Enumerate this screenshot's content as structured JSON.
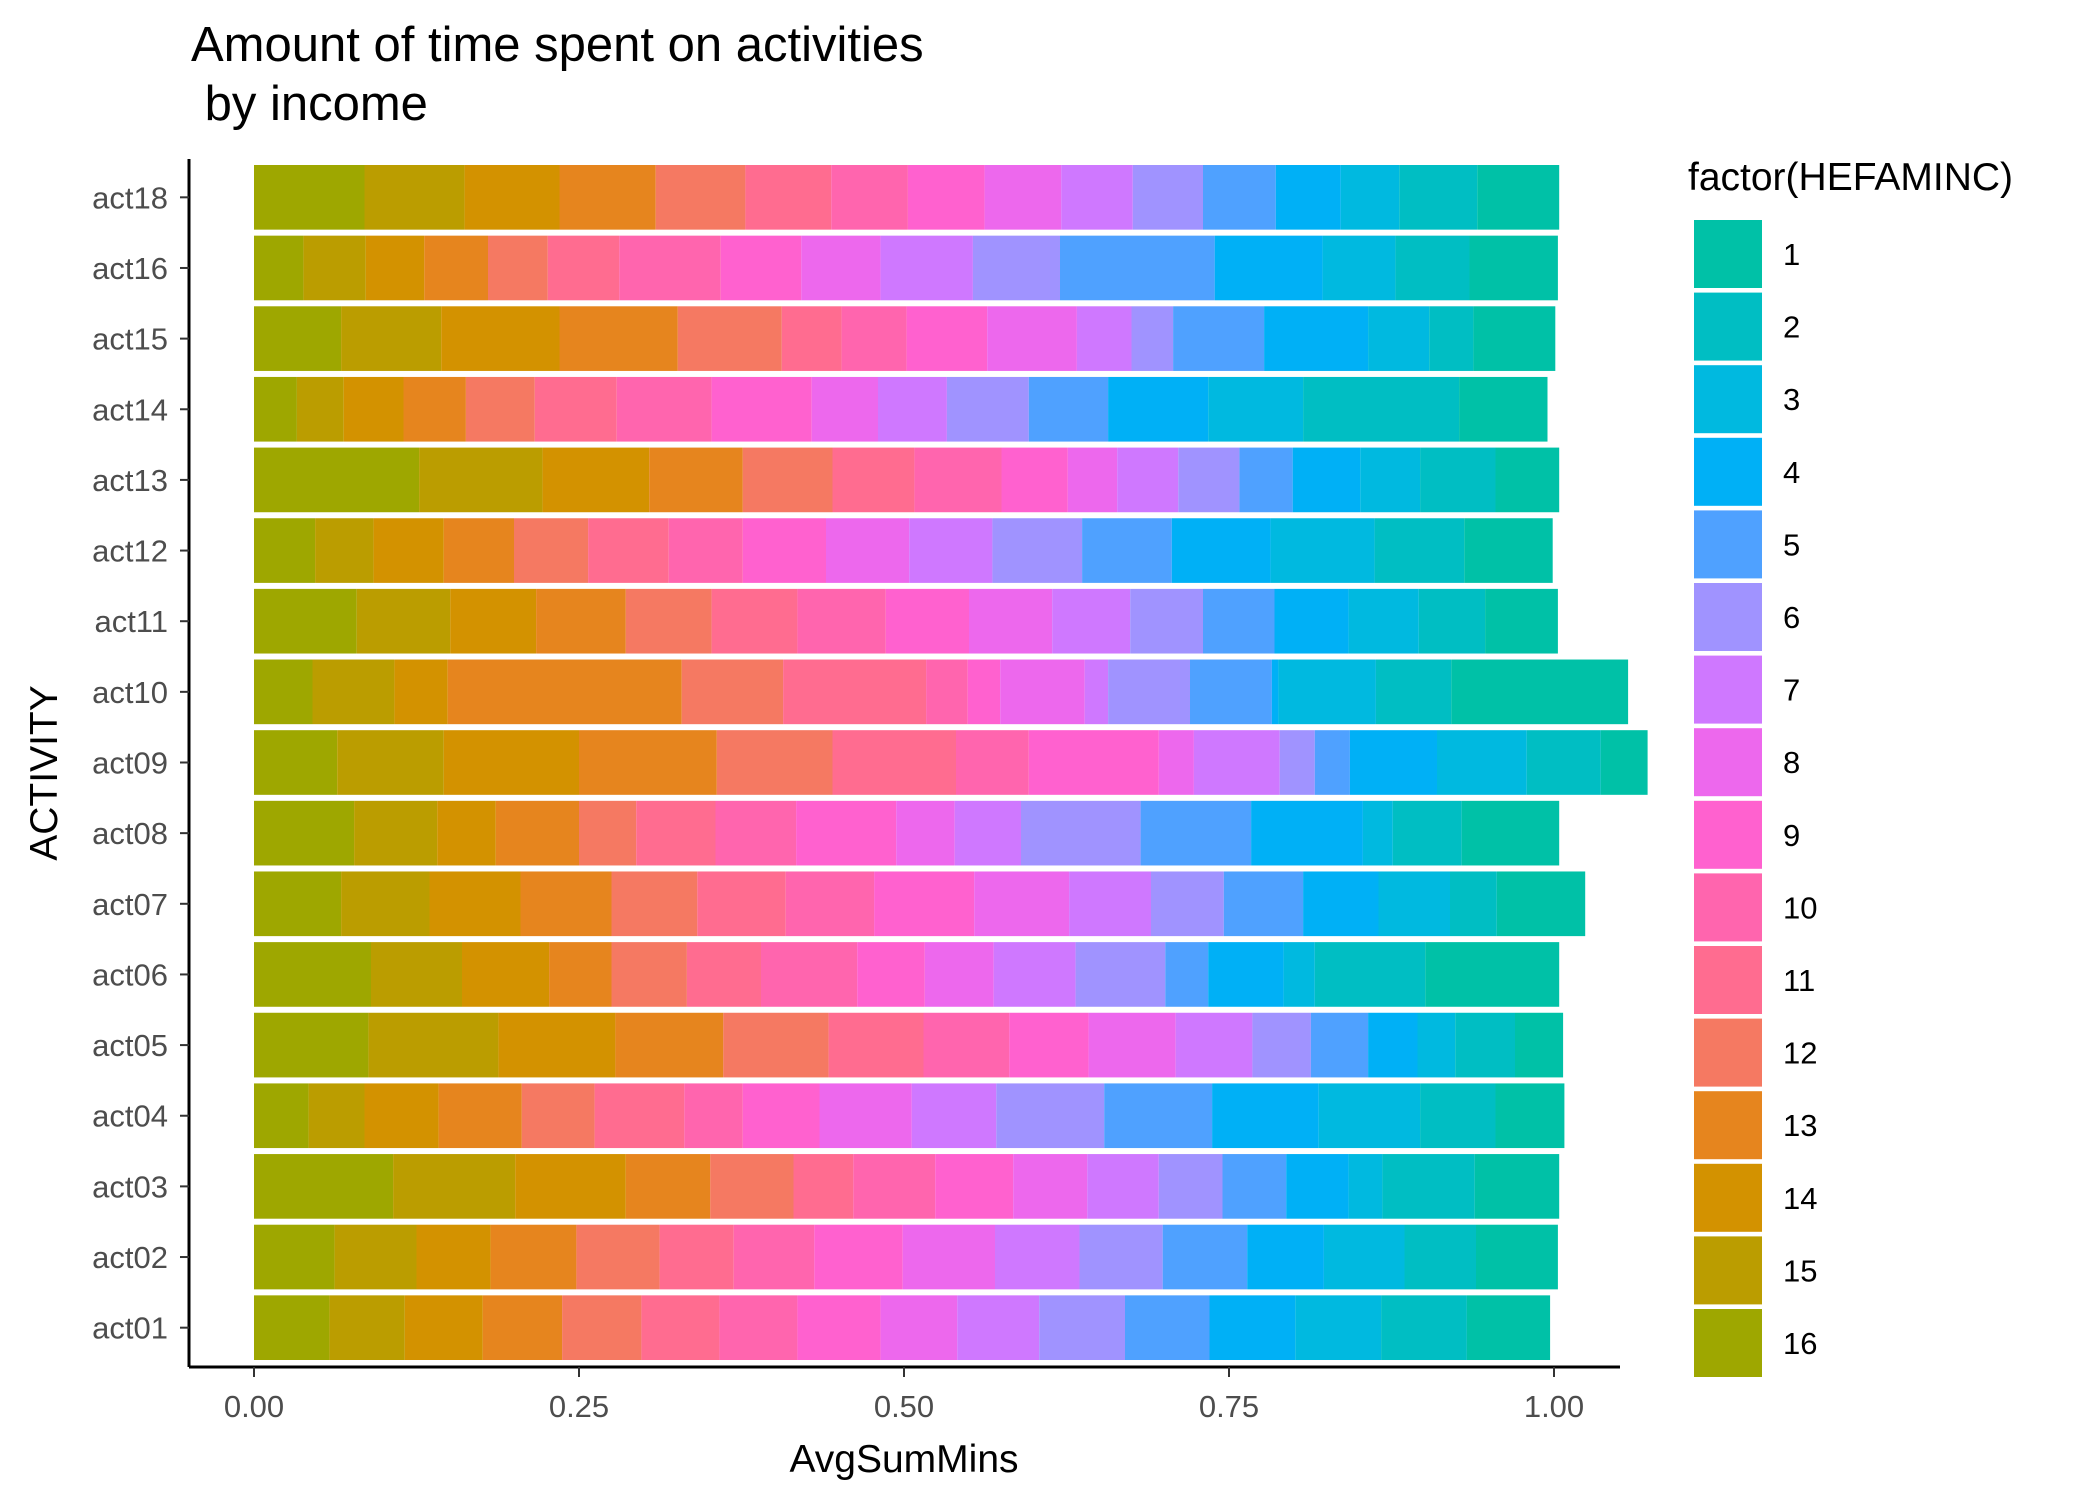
{
  "chart_data": {
    "type": "bar",
    "orientation": "horizontal",
    "stacked": true,
    "normalized": true,
    "title": "Amount of time spent on activities\n by income",
    "xlabel": "AvgSumMins",
    "ylabel": "ACTIVITY",
    "xlim": [
      0,
      1
    ],
    "xticks": [
      "0.00",
      "0.25",
      "0.50",
      "0.75",
      "1.00"
    ],
    "xtick_values": [
      0,
      0.25,
      0.5,
      0.75,
      1.0
    ],
    "grid": false,
    "legend": {
      "title": "factor(HEFAMINC)",
      "position": "right",
      "order": [
        "1",
        "2",
        "3",
        "4",
        "5",
        "6",
        "7",
        "8",
        "9",
        "10",
        "11",
        "12",
        "13",
        "14",
        "15",
        "16"
      ]
    },
    "stack_order": [
      "16",
      "15",
      "14",
      "13",
      "12",
      "11",
      "10",
      "9",
      "8",
      "7",
      "6",
      "5",
      "4",
      "3",
      "2",
      "1"
    ],
    "colors": {
      "1": "#00C1A7",
      "2": "#00BEC3",
      "3": "#00B9E0",
      "4": "#00B0F6",
      "5": "#4FA1FF",
      "6": "#A093FF",
      "7": "#CF78FF",
      "8": "#ED68ED",
      "9": "#FF61CF",
      "10": "#FF65AE",
      "11": "#FF6C90",
      "12": "#F57962",
      "13": "#E6851E",
      "14": "#D39200",
      "15": "#BB9D00",
      "16": "#9EA700"
    },
    "categories": [
      "act18",
      "act16",
      "act15",
      "act14",
      "act13",
      "act12",
      "act11",
      "act10",
      "act09",
      "act08",
      "act07",
      "act06",
      "act05",
      "act04",
      "act03",
      "act02",
      "act01"
    ],
    "series": [
      {
        "name": "16",
        "values": [
          0.085,
          0.038,
          0.067,
          0.033,
          0.127,
          0.047,
          0.079,
          0.045,
          0.064,
          0.077,
          0.067,
          0.09,
          0.088,
          0.042,
          0.107,
          0.062,
          0.058
        ]
      },
      {
        "name": "15",
        "values": [
          0.077,
          0.048,
          0.077,
          0.036,
          0.095,
          0.045,
          0.072,
          0.063,
          0.082,
          0.064,
          0.068,
          0.07,
          0.1,
          0.043,
          0.094,
          0.063,
          0.058
        ]
      },
      {
        "name": "14",
        "values": [
          0.073,
          0.045,
          0.091,
          0.046,
          0.082,
          0.054,
          0.066,
          0.041,
          0.104,
          0.045,
          0.07,
          0.067,
          0.09,
          0.057,
          0.085,
          0.057,
          0.06
        ]
      },
      {
        "name": "13",
        "values": [
          0.074,
          0.049,
          0.091,
          0.048,
          0.072,
          0.054,
          0.069,
          0.18,
          0.106,
          0.064,
          0.07,
          0.048,
          0.083,
          0.064,
          0.065,
          0.066,
          0.061
        ]
      },
      {
        "name": "12",
        "values": [
          0.069,
          0.046,
          0.08,
          0.053,
          0.069,
          0.057,
          0.066,
          0.078,
          0.089,
          0.044,
          0.066,
          0.058,
          0.081,
          0.056,
          0.064,
          0.064,
          0.061
        ]
      },
      {
        "name": "11",
        "values": [
          0.066,
          0.055,
          0.046,
          0.063,
          0.063,
          0.062,
          0.066,
          0.11,
          0.095,
          0.061,
          0.068,
          0.057,
          0.073,
          0.069,
          0.046,
          0.057,
          0.06
        ]
      },
      {
        "name": "10",
        "values": [
          0.059,
          0.078,
          0.05,
          0.073,
          0.067,
          0.057,
          0.068,
          0.032,
          0.056,
          0.062,
          0.068,
          0.074,
          0.066,
          0.045,
          0.063,
          0.062,
          0.06
        ]
      },
      {
        "name": "9",
        "values": [
          0.059,
          0.062,
          0.062,
          0.077,
          0.051,
          0.064,
          0.064,
          0.025,
          0.1,
          0.077,
          0.077,
          0.052,
          0.061,
          0.059,
          0.06,
          0.068,
          0.064
        ]
      },
      {
        "name": "8",
        "values": [
          0.059,
          0.061,
          0.069,
          0.051,
          0.038,
          0.064,
          0.064,
          0.065,
          0.027,
          0.045,
          0.073,
          0.053,
          0.067,
          0.071,
          0.057,
          0.071,
          0.059
        ]
      },
      {
        "name": "7",
        "values": [
          0.055,
          0.071,
          0.042,
          0.053,
          0.047,
          0.064,
          0.06,
          0.018,
          0.066,
          0.051,
          0.063,
          0.063,
          0.059,
          0.065,
          0.055,
          0.065,
          0.063
        ]
      },
      {
        "name": "6",
        "values": [
          0.054,
          0.067,
          0.032,
          0.063,
          0.047,
          0.069,
          0.056,
          0.063,
          0.027,
          0.092,
          0.056,
          0.069,
          0.045,
          0.083,
          0.049,
          0.064,
          0.066
        ]
      },
      {
        "name": "5",
        "values": [
          0.056,
          0.119,
          0.07,
          0.061,
          0.041,
          0.069,
          0.055,
          0.063,
          0.027,
          0.085,
          0.061,
          0.033,
          0.044,
          0.083,
          0.049,
          0.065,
          0.065
        ]
      },
      {
        "name": "4",
        "values": [
          0.05,
          0.083,
          0.08,
          0.077,
          0.052,
          0.076,
          0.057,
          0.005,
          0.067,
          0.086,
          0.058,
          0.058,
          0.038,
          0.082,
          0.048,
          0.059,
          0.066
        ]
      },
      {
        "name": "3",
        "values": [
          0.045,
          0.056,
          0.047,
          0.073,
          0.046,
          0.08,
          0.054,
          0.075,
          0.069,
          0.023,
          0.055,
          0.024,
          0.029,
          0.078,
          0.026,
          0.062,
          0.066
        ]
      },
      {
        "name": "2",
        "values": [
          0.06,
          0.057,
          0.034,
          0.12,
          0.058,
          0.069,
          0.051,
          0.058,
          0.057,
          0.053,
          0.036,
          0.085,
          0.046,
          0.058,
          0.071,
          0.055,
          0.066
        ]
      },
      {
        "name": "1",
        "values": [
          0.063,
          0.068,
          0.063,
          0.068,
          0.049,
          0.068,
          0.056,
          0.136,
          0.036,
          0.075,
          0.068,
          0.103,
          0.037,
          0.053,
          0.065,
          0.063,
          0.064
        ]
      }
    ]
  }
}
